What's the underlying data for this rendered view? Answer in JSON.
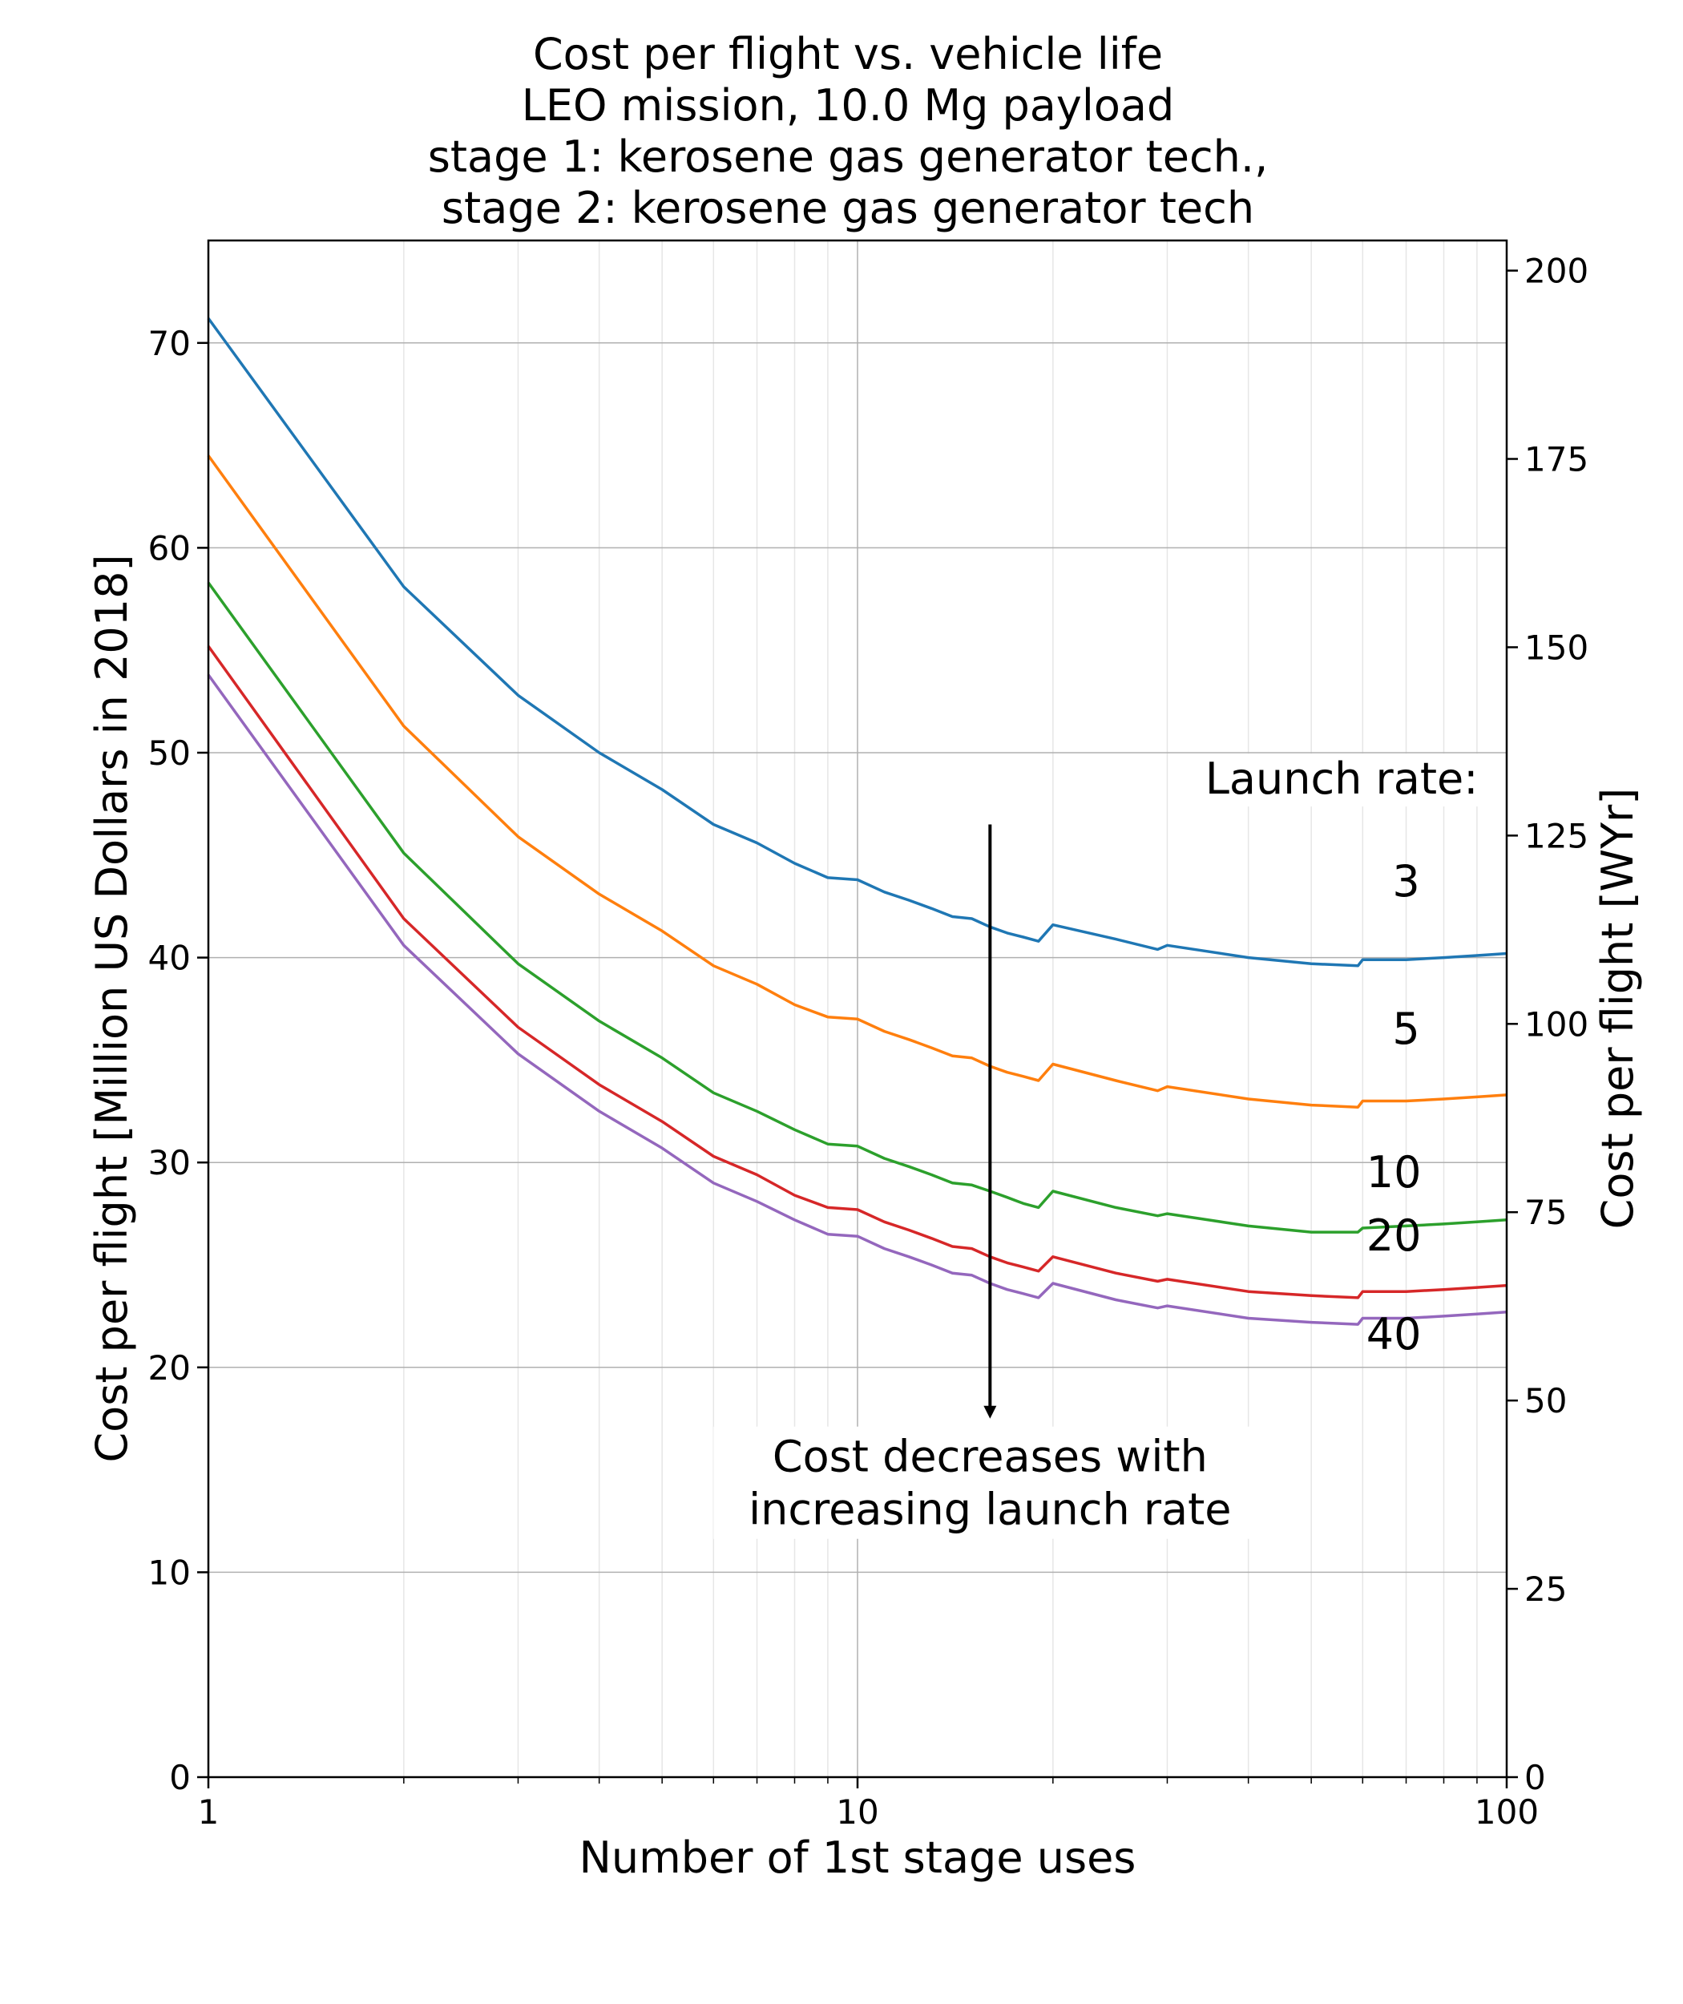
{
  "chart_data": {
    "type": "line",
    "title": [
      "Cost per flight vs. vehicle life",
      "LEO mission, 10.0 Mg payload",
      "stage 1: kerosene gas generator tech.,",
      "stage 2: kerosene gas generator tech"
    ],
    "xlabel": "Number of 1st stage uses",
    "ylabel": "Cost per flight [Million US Dollars in 2018]",
    "y2label": "Cost per flight [WYr]",
    "xscale": "log",
    "xlim": [
      1,
      100
    ],
    "ylim": [
      0,
      75
    ],
    "y2lim": [
      0,
      204
    ],
    "grid": true,
    "x_ticks": [
      {
        "value": 1,
        "label": "1"
      },
      {
        "value": 10,
        "label": "10"
      },
      {
        "value": 100,
        "label": "100"
      }
    ],
    "y_ticks": [
      {
        "value": 0,
        "label": "0"
      },
      {
        "value": 10,
        "label": "10"
      },
      {
        "value": 20,
        "label": "20"
      },
      {
        "value": 30,
        "label": "30"
      },
      {
        "value": 40,
        "label": "40"
      },
      {
        "value": 50,
        "label": "50"
      },
      {
        "value": 60,
        "label": "60"
      },
      {
        "value": 70,
        "label": "70"
      }
    ],
    "y2_ticks": [
      {
        "value": 0,
        "label": "0"
      },
      {
        "value": 25,
        "label": "25"
      },
      {
        "value": 50,
        "label": "50"
      },
      {
        "value": 75,
        "label": "75"
      },
      {
        "value": 100,
        "label": "100"
      },
      {
        "value": 125,
        "label": "125"
      },
      {
        "value": 150,
        "label": "150"
      },
      {
        "value": 175,
        "label": "175"
      },
      {
        "value": 200,
        "label": "200"
      }
    ],
    "legend_title": "Launch rate:",
    "x": [
      1,
      2,
      3,
      4,
      5,
      6,
      7,
      8,
      9,
      10,
      11,
      12,
      13,
      14,
      15,
      16,
      17,
      18,
      19,
      20,
      25,
      29,
      30,
      40,
      50,
      59,
      60,
      70,
      80,
      90,
      100
    ],
    "series": [
      {
        "name": "3",
        "color": "#1f77b4",
        "values": [
          71.2,
          58.1,
          52.8,
          50.0,
          48.2,
          46.5,
          45.6,
          44.6,
          43.9,
          43.8,
          43.2,
          42.8,
          42.4,
          42.0,
          41.9,
          41.5,
          41.2,
          41.0,
          40.8,
          41.6,
          40.9,
          40.4,
          40.6,
          40.0,
          39.7,
          39.6,
          39.9,
          39.9,
          40.0,
          40.1,
          40.2
        ]
      },
      {
        "name": "5",
        "color": "#ff7f0e",
        "values": [
          64.5,
          51.3,
          45.9,
          43.1,
          41.3,
          39.6,
          38.7,
          37.7,
          37.1,
          37.0,
          36.4,
          36.0,
          35.6,
          35.2,
          35.1,
          34.7,
          34.4,
          34.2,
          34.0,
          34.8,
          34.0,
          33.5,
          33.7,
          33.1,
          32.8,
          32.7,
          33.0,
          33.0,
          33.1,
          33.2,
          33.3
        ]
      },
      {
        "name": "10",
        "color": "#2ca02c",
        "values": [
          58.3,
          45.1,
          39.7,
          36.9,
          35.1,
          33.4,
          32.5,
          31.6,
          30.9,
          30.8,
          30.2,
          29.8,
          29.4,
          29.0,
          28.9,
          28.6,
          28.3,
          28.0,
          27.8,
          28.6,
          27.8,
          27.4,
          27.5,
          26.9,
          26.6,
          26.6,
          26.8,
          26.9,
          27.0,
          27.1,
          27.2
        ]
      },
      {
        "name": "20",
        "color": "#d62728",
        "values": [
          55.2,
          41.9,
          36.6,
          33.8,
          32.0,
          30.3,
          29.4,
          28.4,
          27.8,
          27.7,
          27.1,
          26.7,
          26.3,
          25.9,
          25.8,
          25.4,
          25.1,
          24.9,
          24.7,
          25.4,
          24.6,
          24.2,
          24.3,
          23.7,
          23.5,
          23.4,
          23.7,
          23.7,
          23.8,
          23.9,
          24.0
        ]
      },
      {
        "name": "40",
        "color": "#9467bd",
        "values": [
          53.8,
          40.6,
          35.3,
          32.5,
          30.7,
          29.0,
          28.1,
          27.2,
          26.5,
          26.4,
          25.8,
          25.4,
          25.0,
          24.6,
          24.5,
          24.1,
          23.8,
          23.6,
          23.4,
          24.1,
          23.3,
          22.9,
          23.0,
          22.4,
          22.2,
          22.1,
          22.4,
          22.4,
          22.5,
          22.6,
          22.7
        ]
      }
    ],
    "annotations": {
      "arrow_text": [
        "Cost decreases with",
        "increasing launch rate"
      ],
      "arrow_from": {
        "x": 16,
        "y": 46.5
      },
      "arrow_to": {
        "x": 16,
        "y": 17.5
      },
      "rate_labels": [
        {
          "text": "3",
          "x": 70,
          "y": 43.0
        },
        {
          "text": "5",
          "x": 70,
          "y": 35.8
        },
        {
          "text": "10",
          "x": 67,
          "y": 28.8
        },
        {
          "text": "20",
          "x": 67,
          "y": 25.7
        },
        {
          "text": "40",
          "x": 67,
          "y": 20.9
        }
      ],
      "legend_title_pos": {
        "x": 72,
        "y": 48.0
      }
    }
  }
}
